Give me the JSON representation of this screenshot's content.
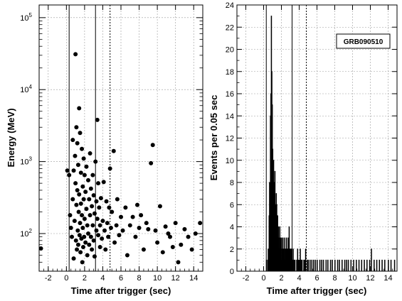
{
  "chart_data": [
    {
      "type": "scatter",
      "xlabel": "Time after trigger (sec)",
      "ylabel": "Energy (MeV)",
      "xlim": [
        -3,
        15
      ],
      "ylim": [
        30,
        150000
      ],
      "yscale": "log",
      "x_ticks": [
        -2,
        0,
        2,
        4,
        6,
        8,
        10,
        12,
        14
      ],
      "y_ticks": [
        {
          "base": "10",
          "exp": "2",
          "value": 100
        },
        {
          "base": "10",
          "exp": "3",
          "value": 1000
        },
        {
          "base": "10",
          "exp": "4",
          "value": 10000
        },
        {
          "base": "10",
          "exp": "5",
          "value": 100000
        }
      ],
      "grid": true,
      "vlines": [
        {
          "x": 0.3,
          "style": "solid"
        },
        {
          "x": 3.2,
          "style": "solid"
        },
        {
          "x": 4.8,
          "style": "dotted"
        }
      ],
      "points": [
        [
          -2.8,
          62
        ],
        [
          0.1,
          750
        ],
        [
          0.3,
          650
        ],
        [
          0.4,
          180
        ],
        [
          0.5,
          120
        ],
        [
          0.6,
          90
        ],
        [
          0.7,
          2000
        ],
        [
          0.7,
          300
        ],
        [
          0.8,
          750
        ],
        [
          0.8,
          45
        ],
        [
          0.9,
          150
        ],
        [
          0.95,
          1200
        ],
        [
          1.0,
          31000
        ],
        [
          1.0,
          500
        ],
        [
          1.05,
          80
        ],
        [
          1.1,
          3000
        ],
        [
          1.1,
          250
        ],
        [
          1.15,
          60
        ],
        [
          1.2,
          1800
        ],
        [
          1.2,
          400
        ],
        [
          1.25,
          110
        ],
        [
          1.3,
          900
        ],
        [
          1.3,
          70
        ],
        [
          1.35,
          200
        ],
        [
          1.4,
          5500
        ],
        [
          1.4,
          350
        ],
        [
          1.45,
          95
        ],
        [
          1.5,
          2500
        ],
        [
          1.5,
          140
        ],
        [
          1.55,
          55
        ],
        [
          1.6,
          700
        ],
        [
          1.6,
          260
        ],
        [
          1.65,
          85
        ],
        [
          1.7,
          1500
        ],
        [
          1.7,
          180
        ],
        [
          1.75,
          40
        ],
        [
          1.8,
          450
        ],
        [
          1.8,
          120
        ],
        [
          1.85,
          65
        ],
        [
          1.9,
          1100
        ],
        [
          1.9,
          300
        ],
        [
          1.95,
          90
        ],
        [
          2.0,
          650
        ],
        [
          2.0,
          160
        ],
        [
          2.1,
          380
        ],
        [
          2.1,
          75
        ],
        [
          2.2,
          850
        ],
        [
          2.2,
          220
        ],
        [
          2.3,
          130
        ],
        [
          2.3,
          50
        ],
        [
          2.4,
          550
        ],
        [
          2.4,
          100
        ],
        [
          2.5,
          300
        ],
        [
          2.5,
          70
        ],
        [
          2.6,
          1300
        ],
        [
          2.6,
          180
        ],
        [
          2.7,
          420
        ],
        [
          2.7,
          90
        ],
        [
          2.8,
          240
        ],
        [
          2.8,
          60
        ],
        [
          2.9,
          650
        ],
        [
          2.9,
          130
        ],
        [
          3.0,
          340
        ],
        [
          3.0,
          80
        ],
        [
          3.1,
          190
        ],
        [
          3.1,
          48
        ],
        [
          3.2,
          1000
        ],
        [
          3.3,
          280
        ],
        [
          3.3,
          110
        ],
        [
          3.4,
          3800
        ],
        [
          3.4,
          160
        ],
        [
          3.5,
          500
        ],
        [
          3.5,
          95
        ],
        [
          3.6,
          230
        ],
        [
          3.7,
          130
        ],
        [
          3.7,
          65
        ],
        [
          3.8,
          310
        ],
        [
          3.9,
          85
        ],
        [
          4.0,
          150
        ],
        [
          4.1,
          520
        ],
        [
          4.2,
          110
        ],
        [
          4.3,
          60
        ],
        [
          4.4,
          280
        ],
        [
          4.5,
          140
        ],
        [
          4.6,
          90
        ],
        [
          4.7,
          230
        ],
        [
          4.8,
          800
        ],
        [
          4.9,
          120
        ],
        [
          5.0,
          200
        ],
        [
          5.2,
          1400
        ],
        [
          5.3,
          75
        ],
        [
          5.5,
          130
        ],
        [
          5.6,
          300
        ],
        [
          5.8,
          95
        ],
        [
          6.0,
          170
        ],
        [
          6.2,
          110
        ],
        [
          6.5,
          230
        ],
        [
          6.7,
          50
        ],
        [
          7.0,
          130
        ],
        [
          7.3,
          170
        ],
        [
          7.6,
          90
        ],
        [
          7.8,
          250
        ],
        [
          8.0,
          120
        ],
        [
          8.2,
          180
        ],
        [
          8.5,
          60
        ],
        [
          8.8,
          140
        ],
        [
          9.0,
          115
        ],
        [
          9.3,
          950
        ],
        [
          9.5,
          1700
        ],
        [
          9.8,
          110
        ],
        [
          10.0,
          75
        ],
        [
          10.3,
          240
        ],
        [
          10.6,
          55
        ],
        [
          10.9,
          125
        ],
        [
          11.2,
          100
        ],
        [
          11.4,
          90
        ],
        [
          11.7,
          65
        ],
        [
          12.0,
          140
        ],
        [
          12.3,
          40
        ],
        [
          12.6,
          70
        ],
        [
          13.0,
          115
        ],
        [
          13.4,
          90
        ],
        [
          13.8,
          60
        ],
        [
          14.2,
          100
        ],
        [
          14.7,
          140
        ]
      ]
    },
    {
      "type": "histogram",
      "xlabel": "Time after trigger (sec)",
      "ylabel": "Events per 0.05 sec",
      "xlim": [
        -3,
        15
      ],
      "ylim": [
        0,
        24
      ],
      "x_ticks": [
        -2,
        0,
        2,
        4,
        6,
        8,
        10,
        12,
        14
      ],
      "y_ticks": [
        0,
        2,
        4,
        6,
        8,
        10,
        12,
        14,
        16,
        18,
        20,
        22,
        24
      ],
      "bin_width": 0.05,
      "grid": true,
      "legend": "GRB090510",
      "legend_position": "top-right",
      "vlines": [
        {
          "x": 0.3,
          "style": "solid"
        },
        {
          "x": 3.2,
          "style": "solid"
        },
        {
          "x": 4.8,
          "style": "dotted"
        }
      ],
      "bins": [
        [
          0.3,
          1
        ],
        [
          0.35,
          0
        ],
        [
          0.45,
          1
        ],
        [
          0.5,
          2
        ],
        [
          0.55,
          1
        ],
        [
          0.6,
          5
        ],
        [
          0.65,
          8
        ],
        [
          0.7,
          7
        ],
        [
          0.75,
          14
        ],
        [
          0.8,
          16
        ],
        [
          0.85,
          23
        ],
        [
          0.9,
          18
        ],
        [
          0.95,
          15
        ],
        [
          1.0,
          11
        ],
        [
          1.05,
          9
        ],
        [
          1.1,
          10
        ],
        [
          1.15,
          8
        ],
        [
          1.2,
          7
        ],
        [
          1.25,
          9
        ],
        [
          1.3,
          6
        ],
        [
          1.35,
          5
        ],
        [
          1.4,
          7
        ],
        [
          1.45,
          6
        ],
        [
          1.5,
          4
        ],
        [
          1.55,
          5
        ],
        [
          1.6,
          3
        ],
        [
          1.65,
          4
        ],
        [
          1.7,
          3
        ],
        [
          1.75,
          2
        ],
        [
          1.8,
          4
        ],
        [
          1.85,
          2
        ],
        [
          1.9,
          3
        ],
        [
          1.95,
          1
        ],
        [
          2.0,
          3
        ],
        [
          2.05,
          2
        ],
        [
          2.1,
          1
        ],
        [
          2.15,
          3
        ],
        [
          2.2,
          2
        ],
        [
          2.25,
          1
        ],
        [
          2.3,
          2
        ],
        [
          2.35,
          3
        ],
        [
          2.4,
          1
        ],
        [
          2.45,
          2
        ],
        [
          2.5,
          1
        ],
        [
          2.55,
          3
        ],
        [
          2.6,
          2
        ],
        [
          2.65,
          1
        ],
        [
          2.7,
          2
        ],
        [
          2.75,
          3
        ],
        [
          2.8,
          2
        ],
        [
          2.85,
          4
        ],
        [
          2.9,
          1
        ],
        [
          2.95,
          2
        ],
        [
          3.0,
          1
        ],
        [
          3.05,
          2
        ],
        [
          3.1,
          1
        ],
        [
          3.15,
          2
        ],
        [
          3.2,
          1
        ],
        [
          3.25,
          0
        ],
        [
          3.3,
          2
        ],
        [
          3.4,
          1
        ],
        [
          3.5,
          1
        ],
        [
          3.6,
          0
        ],
        [
          3.7,
          1
        ],
        [
          3.8,
          2
        ],
        [
          3.9,
          1
        ],
        [
          4.0,
          1
        ],
        [
          4.1,
          2
        ],
        [
          4.2,
          1
        ],
        [
          4.3,
          1
        ],
        [
          4.5,
          1
        ],
        [
          4.6,
          1
        ],
        [
          4.7,
          2
        ],
        [
          4.9,
          1
        ],
        [
          5.0,
          1
        ],
        [
          5.2,
          1
        ],
        [
          5.4,
          1
        ],
        [
          5.6,
          1
        ],
        [
          5.8,
          1
        ],
        [
          6.0,
          1
        ],
        [
          6.3,
          1
        ],
        [
          6.5,
          1
        ],
        [
          6.7,
          1
        ],
        [
          7.0,
          1
        ],
        [
          7.2,
          1
        ],
        [
          7.5,
          1
        ],
        [
          7.7,
          1
        ],
        [
          8.0,
          1
        ],
        [
          8.3,
          1
        ],
        [
          8.5,
          1
        ],
        [
          8.8,
          1
        ],
        [
          9.1,
          1
        ],
        [
          9.3,
          1
        ],
        [
          9.5,
          1
        ],
        [
          9.8,
          1
        ],
        [
          10.1,
          1
        ],
        [
          10.4,
          1
        ],
        [
          10.7,
          1
        ],
        [
          11.0,
          1
        ],
        [
          11.3,
          1
        ],
        [
          11.6,
          1
        ],
        [
          11.9,
          1
        ],
        [
          12.1,
          2
        ],
        [
          12.4,
          1
        ],
        [
          12.7,
          1
        ],
        [
          13.0,
          1
        ],
        [
          13.3,
          1
        ],
        [
          13.6,
          1
        ],
        [
          14.0,
          1
        ],
        [
          14.3,
          1
        ],
        [
          14.7,
          1
        ]
      ]
    }
  ]
}
